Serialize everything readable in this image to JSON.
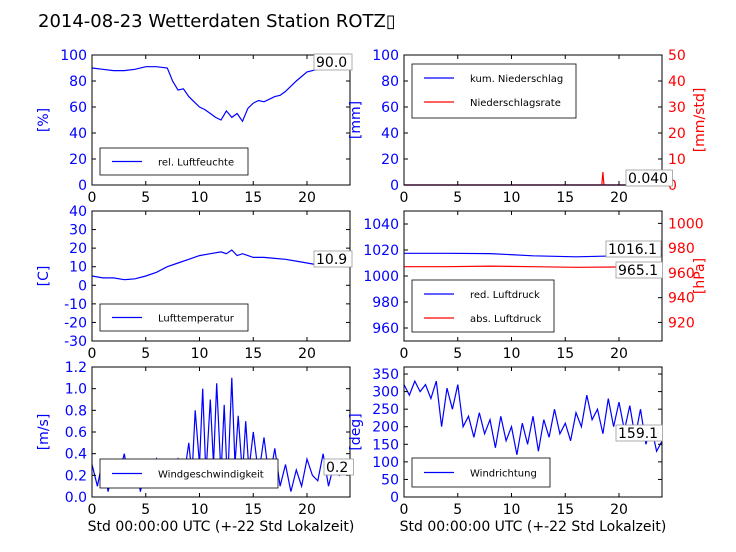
{
  "title": "2014-08-23 Wetterdaten Station ROTZ▯",
  "colors": {
    "primary": "#0000ff",
    "secondary": "#ff0000",
    "axis": "#000000",
    "background": "#ffffff"
  },
  "chart_data": [
    {
      "id": "humidity",
      "type": "line",
      "xlim": [
        0,
        24
      ],
      "xticks": [
        0,
        5,
        10,
        15,
        20
      ],
      "ylim": [
        0,
        100
      ],
      "yticks": [
        0,
        20,
        40,
        60,
        80,
        100
      ],
      "ylabel": "[%]",
      "legend_position": "lower-left",
      "current_value_label": "90.0",
      "series": [
        {
          "name": "rel. Luftfeuchte",
          "color": "#0000ff",
          "x": [
            0,
            1,
            2,
            3,
            4,
            5,
            6,
            7,
            7.5,
            8,
            8.5,
            9,
            9.5,
            10,
            10.5,
            11,
            11.5,
            12,
            12.5,
            13,
            13.5,
            14,
            14.5,
            15,
            15.5,
            16,
            16.5,
            17,
            17.5,
            18,
            19,
            20,
            21,
            22,
            23,
            24
          ],
          "values": [
            90,
            89,
            88,
            88,
            89,
            91,
            91,
            90,
            80,
            73,
            74,
            68,
            64,
            60,
            58,
            55,
            52,
            50,
            57,
            52,
            55,
            49,
            59,
            63,
            65,
            64,
            66,
            68,
            69,
            72,
            80,
            87,
            89,
            90,
            90,
            91
          ]
        }
      ]
    },
    {
      "id": "precipitation",
      "type": "line",
      "xlim": [
        0,
        24
      ],
      "xticks": [
        0,
        5,
        10,
        15,
        20
      ],
      "ylim": [
        0,
        100
      ],
      "yticks": [
        0,
        20,
        40,
        60,
        80,
        100
      ],
      "ylabel": "[mm]",
      "y2lim": [
        0,
        50
      ],
      "y2ticks": [
        0,
        10,
        20,
        30,
        40,
        50
      ],
      "y2label": "[mm/std]",
      "legend_position": "upper-left",
      "current_value_label": "0.040",
      "series": [
        {
          "name": "kum. Niederschlag",
          "color": "#0000ff",
          "axis": "left",
          "x": [
            0,
            24
          ],
          "values": [
            0,
            0
          ]
        },
        {
          "name": "Niederschlagsrate",
          "color": "#ff0000",
          "axis": "right",
          "x": [
            0,
            18.4,
            18.5,
            18.55,
            18.6,
            24
          ],
          "values": [
            0,
            0,
            5,
            2.5,
            0,
            0
          ]
        }
      ]
    },
    {
      "id": "temperature",
      "type": "line",
      "xlim": [
        0,
        24
      ],
      "xticks": [
        0,
        5,
        10,
        15,
        20
      ],
      "ylim": [
        -30,
        40
      ],
      "yticks": [
        -30,
        -20,
        -10,
        0,
        10,
        20,
        30,
        40
      ],
      "ylabel": "[C]",
      "legend_position": "lower-left",
      "current_value_label": "10.9",
      "series": [
        {
          "name": "Lufttemperatur",
          "color": "#0000ff",
          "x": [
            0,
            1,
            2,
            3,
            4,
            5,
            6,
            7,
            8,
            9,
            10,
            11,
            12,
            12.5,
            13,
            13.5,
            14,
            15,
            16,
            17,
            18,
            19,
            20,
            21,
            22,
            23,
            24
          ],
          "values": [
            5,
            4,
            4,
            3,
            3.5,
            5,
            7,
            10,
            12,
            14,
            16,
            17,
            18,
            17,
            19,
            16,
            17,
            15,
            15,
            14.5,
            14,
            13,
            12,
            11,
            11,
            10.9,
            11
          ]
        }
      ]
    },
    {
      "id": "pressure",
      "type": "line",
      "xlim": [
        0,
        24
      ],
      "xticks": [
        0,
        5,
        10,
        15,
        20
      ],
      "ylim": [
        950,
        1050
      ],
      "yticks": [
        960,
        980,
        1000,
        1020,
        1040
      ],
      "ylabel": "",
      "y2lim": [
        905,
        1010
      ],
      "y2ticks": [
        920,
        940,
        960,
        980,
        1000
      ],
      "y2label": "[hPa]",
      "legend_position": "lower-left",
      "current_value_labels": [
        "1016.1",
        "965.1"
      ],
      "series": [
        {
          "name": "red. Luftdruck",
          "color": "#0000ff",
          "axis": "left",
          "x": [
            0,
            4,
            8,
            12,
            16,
            20,
            24
          ],
          "values": [
            1017.5,
            1017.5,
            1017.2,
            1015.5,
            1014.8,
            1015.5,
            1016.1
          ]
        },
        {
          "name": "abs. Luftdruck",
          "color": "#ff0000",
          "axis": "right",
          "x": [
            0,
            4,
            8,
            12,
            16,
            20,
            24
          ],
          "values": [
            965,
            965,
            965.5,
            965,
            964.5,
            964.8,
            965.1
          ]
        }
      ]
    },
    {
      "id": "wind_speed",
      "type": "line",
      "xlim": [
        0,
        24
      ],
      "xticks": [
        0,
        5,
        10,
        15,
        20
      ],
      "ylim": [
        0,
        1.2
      ],
      "yticks": [
        0.0,
        0.2,
        0.4,
        0.6,
        0.8,
        1.0,
        1.2
      ],
      "ylabel": "[m/s]",
      "xlabel": "Std 00:00:00 UTC (+-22 Std Lokalzeit)",
      "legend_position": "lower-center",
      "current_value_label": "0.2",
      "series": [
        {
          "name": "Windgeschwindigkeit",
          "color": "#0000ff",
          "x": [
            0,
            0.5,
            1,
            1.5,
            2,
            2.5,
            3,
            3.5,
            4,
            4.5,
            5,
            5.5,
            6,
            6.5,
            7,
            7.5,
            8,
            8.5,
            9,
            9.3,
            9.6,
            10,
            10.3,
            10.6,
            11,
            11.3,
            11.6,
            12,
            12.3,
            12.6,
            13,
            13.3,
            13.6,
            14,
            14.3,
            14.6,
            15,
            15.5,
            16,
            16.5,
            17,
            17.5,
            18,
            18.5,
            19,
            19.5,
            20,
            20.5,
            21,
            21.5,
            22,
            22.5,
            23,
            23.5,
            24
          ],
          "values": [
            0.3,
            0.1,
            0.35,
            0.05,
            0.3,
            0.2,
            0.4,
            0.1,
            0.35,
            0.05,
            0.3,
            0.2,
            0.35,
            0.1,
            0.3,
            0.2,
            0.35,
            0.15,
            0.5,
            0.2,
            0.8,
            0.3,
            1.0,
            0.2,
            0.9,
            0.3,
            1.05,
            0.2,
            0.85,
            0.1,
            1.1,
            0.3,
            0.75,
            0.2,
            0.7,
            0.25,
            0.6,
            0.2,
            0.55,
            0.15,
            0.45,
            0.1,
            0.3,
            0.05,
            0.25,
            0.1,
            0.35,
            0.2,
            0.15,
            0.4,
            0.1,
            0.3,
            0.2,
            0.25,
            0.2
          ]
        }
      ]
    },
    {
      "id": "wind_direction",
      "type": "line",
      "xlim": [
        0,
        24
      ],
      "xticks": [
        0,
        5,
        10,
        15,
        20
      ],
      "ylim": [
        0,
        370
      ],
      "yticks": [
        0,
        50,
        100,
        150,
        200,
        250,
        300,
        350
      ],
      "ylabel": "[deg]",
      "xlabel": "Std 00:00:00 UTC (+-22 Std Lokalzeit)",
      "legend_position": "lower-left",
      "current_value_label": "159.1",
      "series": [
        {
          "name": "Windrichtung",
          "color": "#0000ff",
          "x": [
            0,
            0.5,
            1,
            1.5,
            2,
            2.5,
            3,
            3.5,
            4,
            4.5,
            5,
            5.5,
            6,
            6.5,
            7,
            7.5,
            8,
            8.5,
            9,
            9.5,
            10,
            10.5,
            11,
            11.5,
            12,
            12.5,
            13,
            13.5,
            14,
            14.5,
            15,
            15.5,
            16,
            16.5,
            17,
            17.5,
            18,
            18.5,
            19,
            19.5,
            20,
            20.5,
            21,
            21.5,
            22,
            22.5,
            23,
            23.5,
            24
          ],
          "values": [
            320,
            290,
            330,
            300,
            320,
            280,
            330,
            200,
            310,
            250,
            320,
            200,
            230,
            170,
            240,
            180,
            220,
            140,
            230,
            160,
            200,
            120,
            210,
            150,
            230,
            130,
            220,
            170,
            250,
            180,
            210,
            160,
            240,
            200,
            290,
            220,
            250,
            180,
            280,
            200,
            270,
            190,
            260,
            170,
            250,
            150,
            200,
            130,
            159
          ]
        }
      ]
    }
  ]
}
